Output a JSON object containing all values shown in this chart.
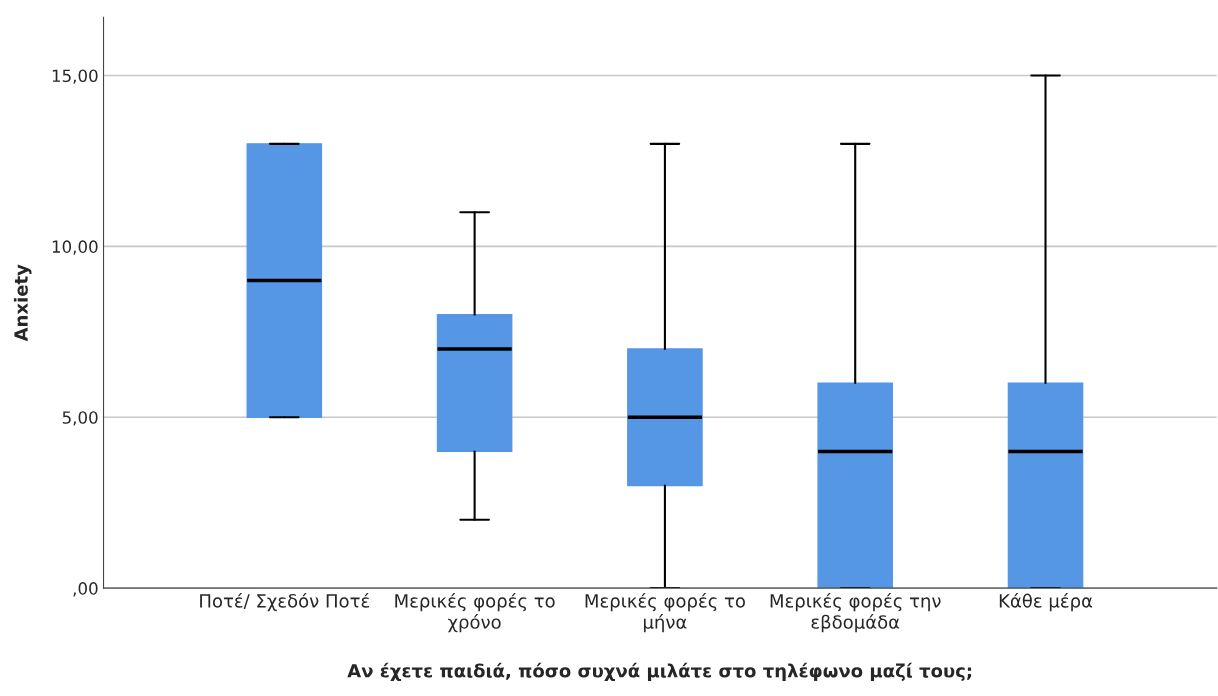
{
  "chart_data": {
    "type": "box",
    "xlabel": "Αν έχετε παιδιά, πόσο συχνά μιλάτε στο τηλέφωνο μαζί τους;",
    "ylabel": "Anxiety",
    "categories": [
      "Ποτέ/ Σχεδόν Ποτέ",
      "Μερικές φορές το\nχρόνο",
      "Μερικές φορές το\nμήνα",
      "Μερικές φορές την\nεβδομάδα",
      "Κάθε μέρα"
    ],
    "boxes": [
      {
        "low": 5,
        "q1": 5,
        "median": 9,
        "q3": 13,
        "high": 13
      },
      {
        "low": 2,
        "q1": 4,
        "median": 7,
        "q3": 8,
        "high": 11
      },
      {
        "low": 0,
        "q1": 3,
        "median": 5,
        "q3": 7,
        "high": 13
      },
      {
        "low": 0,
        "q1": 0,
        "median": 4,
        "q3": 6,
        "high": 13
      },
      {
        "low": 0,
        "q1": 0,
        "median": 4,
        "q3": 6,
        "high": 15
      }
    ],
    "color": "#5596e5",
    "ylim": [
      0,
      16.7
    ],
    "yticks": [
      {
        "value": 0,
        "label": ",00"
      },
      {
        "value": 5,
        "label": "5,00"
      },
      {
        "value": 10,
        "label": "10,00"
      },
      {
        "value": 15,
        "label": "15,00"
      }
    ],
    "grid": "y"
  }
}
